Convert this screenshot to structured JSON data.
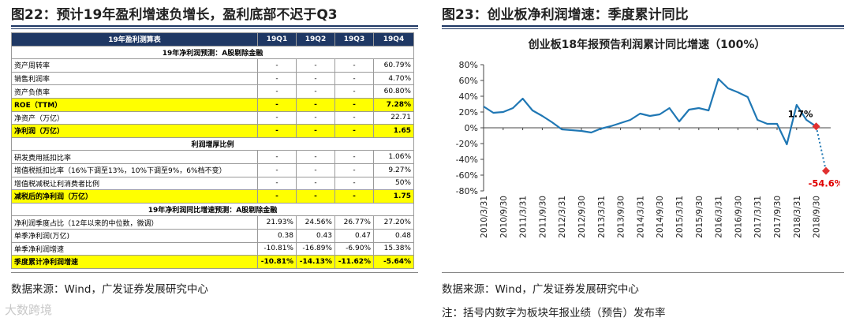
{
  "left_panel": {
    "title": "图22：预计19年盈利增速负增长，盈利底部不迟于Q3",
    "source": "数据来源：Wind，广发证券发展研究中心",
    "table": {
      "header": [
        "19年盈利测算表",
        "19Q1",
        "19Q2",
        "19Q3",
        "19Q4"
      ],
      "sections": [
        {
          "title": "19年净利润预测：A股剔除金融",
          "rows": [
            {
              "label": "资产周转率",
              "values": [
                "-",
                "-",
                "-",
                "60.79%"
              ],
              "highlight": false
            },
            {
              "label": "销售利润率",
              "values": [
                "-",
                "-",
                "-",
                "4.70%"
              ],
              "highlight": false
            },
            {
              "label": "资产负债率",
              "values": [
                "-",
                "-",
                "-",
                "60.80%"
              ],
              "highlight": false
            },
            {
              "label": "ROE（TTM）",
              "values": [
                "-",
                "-",
                "-",
                "7.28%"
              ],
              "highlight": true
            },
            {
              "label": "净资产（万亿）",
              "values": [
                "-",
                "-",
                "-",
                "22.71"
              ],
              "highlight": false
            },
            {
              "label": "净利润（万亿）",
              "values": [
                "-",
                "-",
                "-",
                "1.65"
              ],
              "highlight": true
            }
          ]
        },
        {
          "title": "利润增厚比例",
          "rows": [
            {
              "label": "研发费用抵扣比率",
              "values": [
                "-",
                "-",
                "-",
                "1.06%"
              ],
              "highlight": false
            },
            {
              "label": "增值税抵扣比率（16%下调至13%，10%下调至9%，6%档不变）",
              "values": [
                "-",
                "-",
                "-",
                "9.27%"
              ],
              "highlight": false
            },
            {
              "label": "增值税减税让利消费者比例",
              "values": [
                "-",
                "-",
                "-",
                "50%"
              ],
              "highlight": false
            },
            {
              "label": "减税后的净利润（万亿）",
              "values": [
                "-",
                "-",
                "-",
                "1.75"
              ],
              "highlight": true
            }
          ]
        },
        {
          "title": "19年净利润同比增速预测：A股剔除金融",
          "rows": [
            {
              "label": "净利润季度占比（12年以来的中位数，微调）",
              "values": [
                "21.93%",
                "24.56%",
                "26.77%",
                "27.20%"
              ],
              "highlight": false
            },
            {
              "label": "单季净利润(万亿)",
              "values": [
                "0.38",
                "0.43",
                "0.47",
                "0.48"
              ],
              "highlight": false
            },
            {
              "label": "单季净利润增速",
              "values": [
                "-10.81%",
                "-16.89%",
                "-6.90%",
                "15.38%"
              ],
              "highlight": false
            },
            {
              "label": "季度累计净利润增速",
              "values": [
                "-10.81%",
                "-14.13%",
                "-11.62%",
                "-5.64%"
              ],
              "highlight": true
            }
          ]
        }
      ]
    }
  },
  "right_panel": {
    "title": "图23：创业板净利润增速：季度累计同比",
    "source": "数据来源：Wind，广发证券发展研究中心",
    "note": "注：括号内数字为板块年报业绩（预告）发布率"
  },
  "watermark": "大数跨境",
  "chart_data": {
    "type": "line",
    "title": "创业板18年报预告利润累计同比增速（100%）",
    "x": [
      "2010/3/31",
      "2010/6/30",
      "2010/9/30",
      "2010/12/31",
      "2011/3/31",
      "2011/6/30",
      "2011/9/30",
      "2011/12/31",
      "2012/3/31",
      "2012/6/30",
      "2012/9/30",
      "2012/12/31",
      "2013/3/31",
      "2013/6/30",
      "2013/9/30",
      "2013/12/31",
      "2014/3/31",
      "2014/6/30",
      "2014/9/30",
      "2014/12/31",
      "2015/3/31",
      "2015/6/30",
      "2015/9/30",
      "2015/12/31",
      "2016/3/31",
      "2016/6/30",
      "2016/9/30",
      "2016/12/31",
      "2017/3/31",
      "2017/6/30",
      "2017/9/30",
      "2017/12/31",
      "2018/3/31",
      "2018/6/30",
      "2018/9/30",
      "2018/12/31"
    ],
    "x_tick_labels": [
      "2010/3/31",
      "2010/9/30",
      "2011/3/31",
      "2011/9/30",
      "2012/3/31",
      "2012/9/30",
      "2013/3/31",
      "2013/9/30",
      "2014/3/31",
      "2014/9/30",
      "2015/3/31",
      "2015/9/30",
      "2016/3/31",
      "2016/9/30",
      "2017/3/31",
      "2017/9/30",
      "2018/3/31",
      "2018/9/30"
    ],
    "series": [
      {
        "values": [
          27,
          19,
          20,
          25,
          37,
          22,
          15,
          7,
          -2,
          -3,
          -4,
          -6,
          -1,
          2,
          6,
          10,
          18,
          15,
          17,
          25,
          8,
          23,
          25,
          22,
          62,
          50,
          45,
          39,
          10,
          5,
          5,
          -21,
          29,
          10,
          1.7,
          null
        ],
        "color": "#1f77b4"
      },
      {
        "values": [
          null,
          null,
          null,
          null,
          null,
          null,
          null,
          null,
          null,
          null,
          null,
          null,
          null,
          null,
          null,
          null,
          null,
          null,
          null,
          null,
          null,
          null,
          null,
          null,
          null,
          null,
          null,
          null,
          null,
          null,
          null,
          null,
          null,
          null,
          1.7,
          -54.6
        ],
        "color": "#1f77b4",
        "style": "dotted"
      }
    ],
    "annotations": [
      {
        "x": "2018/9/30",
        "label": "1.7%",
        "color": "#000000"
      },
      {
        "x": "2018/12/31",
        "label": "-54.6%",
        "color": "#e00000"
      }
    ],
    "marker_color": "#e03030",
    "ylim": [
      -80,
      80
    ],
    "y_ticks": [
      "80%",
      "60%",
      "40%",
      "20%",
      "0%",
      "-20%",
      "-40%",
      "-60%",
      "-80%"
    ],
    "grid": false,
    "xlabel": "",
    "ylabel": ""
  }
}
